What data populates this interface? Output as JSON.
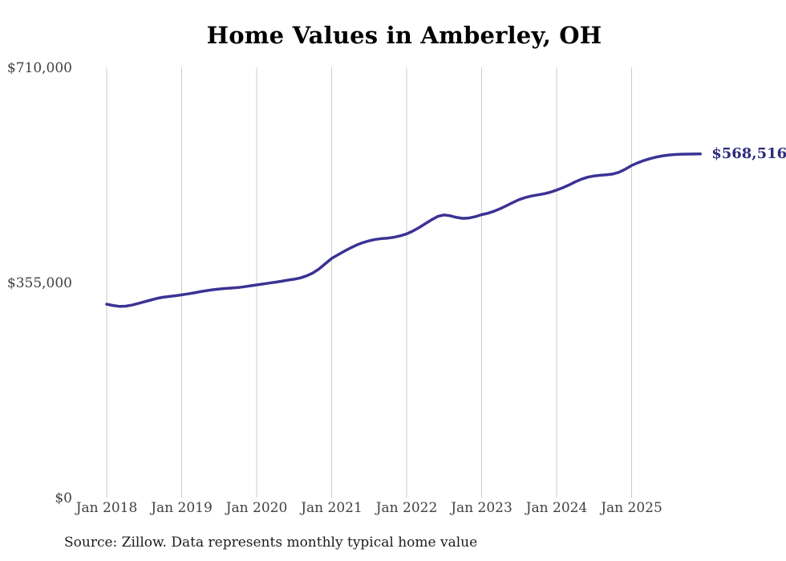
{
  "chart": {
    "title": "Home Values in Amberley, OH",
    "end_label": "$568,516",
    "source_note": "Source: Zillow. Data represents monthly typical home value"
  },
  "chart_data": {
    "type": "line",
    "title": "Home Values in Amberley, OH",
    "series_name": "Monthly typical home value",
    "x_start": "Jan 2018",
    "x_end": "Dec 2025",
    "x_tick_labels": [
      "Jan 2018",
      "Jan 2019",
      "Jan 2020",
      "Jan 2021",
      "Jan 2022",
      "Jan 2023",
      "Jan 2024",
      "Jan 2025"
    ],
    "y_ticks": [
      {
        "label": "$0",
        "value": 0
      },
      {
        "label": "$355,000",
        "value": 355000
      },
      {
        "label": "$710,000",
        "value": 710000
      }
    ],
    "ylim": [
      0,
      710000
    ],
    "grid": "vertical-only",
    "legend": "none",
    "line_color": "#3b3294",
    "gridline_color": "#cccccc",
    "end_label_color": "#2e2a7d",
    "final_value": 568516,
    "final_value_label": "$568,516",
    "values": [
      320600,
      318400,
      317000,
      317300,
      319000,
      321600,
      324400,
      327200,
      329900,
      331900,
      333300,
      334500,
      335900,
      337500,
      339300,
      341200,
      343000,
      344400,
      345600,
      346500,
      347200,
      348000,
      349300,
      350900,
      352400,
      353800,
      355400,
      356900,
      358500,
      360300,
      361800,
      363900,
      367300,
      372100,
      378900,
      387500,
      396100,
      402000,
      407800,
      413300,
      418200,
      422100,
      425200,
      427400,
      428800,
      429600,
      431000,
      433400,
      436600,
      441200,
      447100,
      453500,
      459900,
      465500,
      467800,
      466400,
      463700,
      462100,
      462800,
      465100,
      468300,
      470700,
      473900,
      478300,
      483200,
      488400,
      493100,
      496600,
      499100,
      501000,
      502800,
      505400,
      508900,
      512800,
      517400,
      522500,
      527000,
      530300,
      532300,
      533300,
      534100,
      535400,
      538300,
      543400,
      549500,
      554000,
      557800,
      560900,
      563500,
      565500,
      566800,
      567600,
      568100,
      568300,
      568400,
      568516
    ]
  }
}
